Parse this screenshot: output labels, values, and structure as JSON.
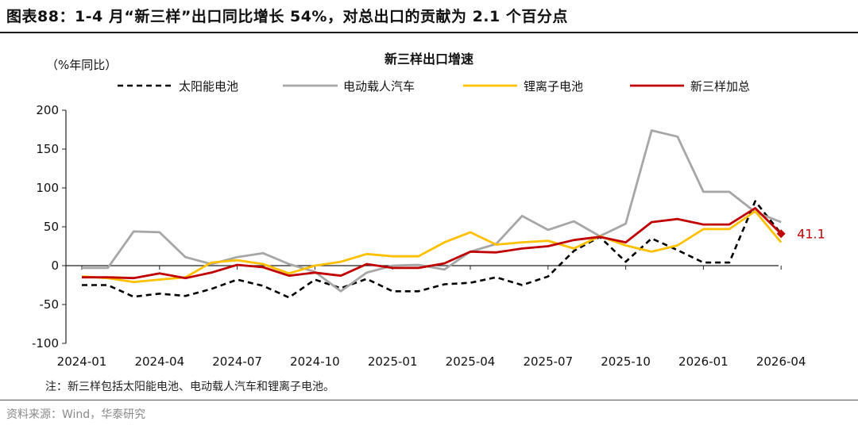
{
  "figure_title": "图表88：1-4 月“新三样”出口同比增长 54%，对总出口的贡献为 2.1 个百分点",
  "note": "注：新三样包括太阳能电池、电动载人汽车和锂离子电池。",
  "source": "资料来源：Wind，华泰研究",
  "chart_data": {
    "type": "line",
    "title": "新三样出口增速",
    "ylabel": "（%年同比）",
    "ylim": [
      -100,
      200
    ],
    "yticks": [
      -100,
      -50,
      0,
      50,
      100,
      150,
      200
    ],
    "grid": false,
    "legend_position": "top",
    "x": [
      "2024-01",
      "2024-02",
      "2024-03",
      "2024-04",
      "2024-05",
      "2024-06",
      "2024-07",
      "2024-08",
      "2024-09",
      "2024-10",
      "2024-11",
      "2024-12",
      "2025-01",
      "2025-02",
      "2025-03",
      "2025-04",
      "2025-05",
      "2025-06",
      "2025-07",
      "2025-08",
      "2025-09",
      "2025-10",
      "2025-11",
      "2025-12",
      "2026-01",
      "2026-02",
      "2026-03",
      "2026-04"
    ],
    "x_tick_labels": [
      "2024-01",
      "2024-04",
      "2024-07",
      "2024-10",
      "2025-01",
      "2025-04",
      "2025-07",
      "2025-10",
      "2026-01",
      "2026-04"
    ],
    "series": [
      {
        "name": "太阳能电池",
        "color": "#000000",
        "style": "dashed",
        "values": [
          -25,
          -25,
          -40,
          -36,
          -39,
          -30,
          -18,
          -26,
          -41,
          -18,
          -29,
          -17,
          -33,
          -33,
          -24,
          -22,
          -15,
          -25,
          -14,
          19,
          37,
          5,
          35,
          20,
          4,
          4,
          83,
          41.1
        ]
      },
      {
        "name": "电动载人汽车",
        "color": "#a6a6a6",
        "style": "solid",
        "values": [
          -3,
          -3,
          44,
          43,
          11,
          2,
          11,
          16,
          2,
          -8,
          -33,
          -9,
          0,
          1,
          -5,
          18,
          28,
          64,
          46,
          57,
          38,
          54,
          174,
          166,
          95,
          95,
          69,
          56
        ]
      },
      {
        "name": "锂离子电池",
        "color": "#ffc000",
        "style": "solid",
        "values": [
          -14,
          -16,
          -21,
          -18,
          -15,
          4,
          7,
          2,
          -10,
          0,
          5,
          15,
          12,
          12,
          30,
          43,
          27,
          30,
          32,
          22,
          38,
          26,
          18,
          26,
          47,
          47,
          70,
          30
        ]
      },
      {
        "name": "新三样加总",
        "color": "#c00000",
        "style": "solid",
        "values": [
          -15,
          -15,
          -16,
          -10,
          -16,
          -9,
          1,
          -2,
          -13,
          -9,
          -13,
          2,
          -3,
          -3,
          3,
          18,
          17,
          22,
          25,
          33,
          37,
          30,
          56,
          60,
          53,
          53,
          74,
          41.1
        ]
      }
    ],
    "annotation": {
      "text": "41.1",
      "x": "2026-04",
      "y": 41.1,
      "color": "#c00000"
    }
  }
}
